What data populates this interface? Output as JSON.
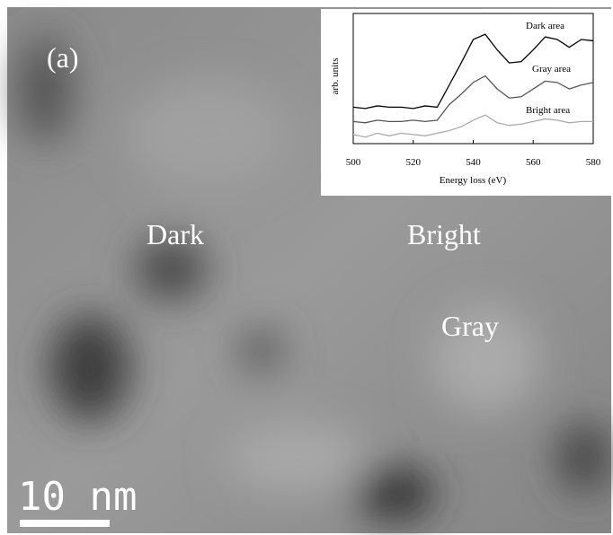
{
  "image_labels": {
    "panel": "(a)",
    "regions": [
      "Dark",
      "Bright",
      "Gray"
    ],
    "scale_bar": "10 nm"
  },
  "chart_data": {
    "type": "line",
    "xlabel": "Energy loss (eV)",
    "ylabel": "arb. units",
    "x": [
      500,
      504,
      508,
      512,
      516,
      520,
      524,
      528,
      532,
      536,
      540,
      544,
      548,
      552,
      556,
      560,
      564,
      568,
      572,
      576,
      580
    ],
    "series": [
      {
        "name": "Dark area",
        "color": "#000000",
        "values": [
          28,
          27,
          29,
          28,
          28,
          27,
          29,
          28,
          45,
          62,
          80,
          84,
          72,
          62,
          63,
          72,
          82,
          80,
          74,
          80,
          79
        ]
      },
      {
        "name": "Gray area",
        "color": "#555555",
        "values": [
          17,
          16,
          18,
          17,
          17,
          18,
          17,
          18,
          30,
          38,
          47,
          52,
          42,
          35,
          36,
          42,
          48,
          47,
          42,
          45,
          47
        ]
      },
      {
        "name": "Bright area",
        "color": "#aaaaaa",
        "values": [
          7,
          5,
          8,
          6,
          8,
          7,
          6,
          8,
          10,
          13,
          18,
          22,
          16,
          14,
          15,
          17,
          19,
          18,
          16,
          17,
          17
        ]
      }
    ],
    "xlim": [
      500,
      580
    ],
    "xticks": [
      500,
      520,
      540,
      560,
      580
    ],
    "ylim": [
      0,
      100
    ]
  }
}
